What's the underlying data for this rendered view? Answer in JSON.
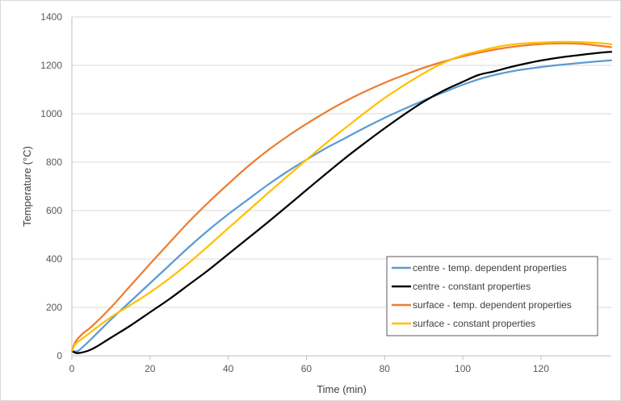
{
  "chart_data": {
    "type": "line",
    "title": "",
    "xlabel": "Time (min)",
    "ylabel": "Temperature (°C)",
    "xlim": [
      0,
      138
    ],
    "ylim": [
      0,
      1400
    ],
    "x_ticks": [
      0,
      20,
      40,
      60,
      80,
      100,
      120
    ],
    "y_ticks": [
      0,
      200,
      400,
      600,
      800,
      1000,
      1200,
      1400
    ],
    "grid": "horizontal",
    "legend_position": "bottom-right",
    "series": [
      {
        "name": "centre - temp. dependent properties",
        "color": "#5b9bd5",
        "points": [
          [
            0,
            20
          ],
          [
            1,
            18
          ],
          [
            2,
            25
          ],
          [
            5,
            70
          ],
          [
            10,
            150
          ],
          [
            15,
            225
          ],
          [
            20,
            300
          ],
          [
            25,
            375
          ],
          [
            30,
            450
          ],
          [
            35,
            520
          ],
          [
            40,
            585
          ],
          [
            45,
            645
          ],
          [
            50,
            705
          ],
          [
            55,
            760
          ],
          [
            60,
            810
          ],
          [
            65,
            858
          ],
          [
            70,
            900
          ],
          [
            75,
            943
          ],
          [
            80,
            983
          ],
          [
            85,
            1020
          ],
          [
            90,
            1055
          ],
          [
            95,
            1088
          ],
          [
            100,
            1120
          ],
          [
            105,
            1147
          ],
          [
            110,
            1167
          ],
          [
            115,
            1182
          ],
          [
            120,
            1193
          ],
          [
            125,
            1202
          ],
          [
            130,
            1210
          ],
          [
            135,
            1217
          ],
          [
            138,
            1221
          ]
        ]
      },
      {
        "name": "centre - constant properties",
        "color": "#000000",
        "points": [
          [
            0,
            20
          ],
          [
            1,
            12
          ],
          [
            2,
            12
          ],
          [
            4,
            20
          ],
          [
            6,
            35
          ],
          [
            10,
            75
          ],
          [
            15,
            125
          ],
          [
            20,
            180
          ],
          [
            25,
            235
          ],
          [
            30,
            295
          ],
          [
            35,
            355
          ],
          [
            40,
            420
          ],
          [
            45,
            485
          ],
          [
            50,
            550
          ],
          [
            55,
            617
          ],
          [
            60,
            685
          ],
          [
            65,
            752
          ],
          [
            70,
            818
          ],
          [
            75,
            880
          ],
          [
            80,
            940
          ],
          [
            85,
            997
          ],
          [
            90,
            1050
          ],
          [
            95,
            1095
          ],
          [
            100,
            1132
          ],
          [
            104,
            1160
          ],
          [
            108,
            1175
          ],
          [
            112,
            1192
          ],
          [
            116,
            1207
          ],
          [
            120,
            1220
          ],
          [
            125,
            1233
          ],
          [
            130,
            1243
          ],
          [
            135,
            1252
          ],
          [
            138,
            1256
          ]
        ]
      },
      {
        "name": "surface - temp. dependent properties",
        "color": "#ed7d31",
        "points": [
          [
            0,
            20
          ],
          [
            1,
            60
          ],
          [
            3,
            95
          ],
          [
            5,
            120
          ],
          [
            10,
            200
          ],
          [
            15,
            290
          ],
          [
            20,
            380
          ],
          [
            25,
            468
          ],
          [
            30,
            555
          ],
          [
            35,
            635
          ],
          [
            40,
            710
          ],
          [
            45,
            782
          ],
          [
            50,
            847
          ],
          [
            55,
            905
          ],
          [
            60,
            958
          ],
          [
            65,
            1007
          ],
          [
            70,
            1052
          ],
          [
            75,
            1092
          ],
          [
            80,
            1128
          ],
          [
            85,
            1160
          ],
          [
            90,
            1190
          ],
          [
            95,
            1215
          ],
          [
            100,
            1237
          ],
          [
            105,
            1255
          ],
          [
            110,
            1270
          ],
          [
            115,
            1281
          ],
          [
            120,
            1288
          ],
          [
            125,
            1291
          ],
          [
            130,
            1289
          ],
          [
            135,
            1281
          ],
          [
            138,
            1275
          ]
        ]
      },
      {
        "name": "surface - constant properties",
        "color": "#ffc000",
        "points": [
          [
            0,
            20
          ],
          [
            1,
            50
          ],
          [
            3,
            75
          ],
          [
            5,
            100
          ],
          [
            10,
            160
          ],
          [
            15,
            210
          ],
          [
            20,
            262
          ],
          [
            25,
            320
          ],
          [
            30,
            385
          ],
          [
            35,
            455
          ],
          [
            40,
            527
          ],
          [
            45,
            598
          ],
          [
            50,
            670
          ],
          [
            55,
            740
          ],
          [
            60,
            810
          ],
          [
            65,
            878
          ],
          [
            70,
            942
          ],
          [
            75,
            1005
          ],
          [
            80,
            1065
          ],
          [
            85,
            1118
          ],
          [
            90,
            1167
          ],
          [
            95,
            1210
          ],
          [
            100,
            1242
          ],
          [
            105,
            1262
          ],
          [
            110,
            1280
          ],
          [
            115,
            1290
          ],
          [
            120,
            1294
          ],
          [
            125,
            1297
          ],
          [
            130,
            1296
          ],
          [
            135,
            1292
          ],
          [
            138,
            1287
          ]
        ]
      }
    ]
  }
}
